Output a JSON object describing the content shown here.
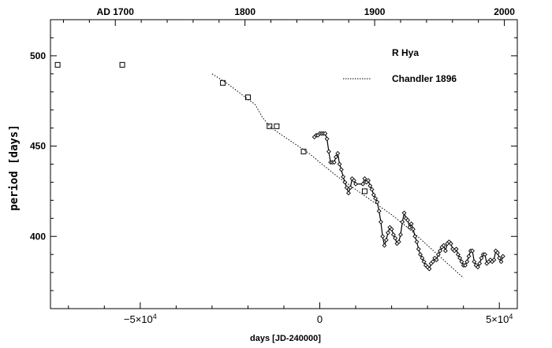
{
  "chart_data": {
    "type": "scatter",
    "xlabel": "days [JD-240000]",
    "ylabel": "period [days]",
    "xlim": [
      -75000,
      55000
    ],
    "ylim": [
      360,
      520
    ],
    "xticks": [
      {
        "value": -50000,
        "label": "−5×10",
        "sup": "4"
      },
      {
        "value": 0,
        "label": "0",
        "sup": ""
      },
      {
        "value": 50000,
        "label": "5×10",
        "sup": "4"
      }
    ],
    "yticks": [
      {
        "value": 400,
        "label": "400"
      },
      {
        "value": 450,
        "label": "450"
      },
      {
        "value": 500,
        "label": "500"
      }
    ],
    "top_axis": {
      "ticks": [
        {
          "year": 1700,
          "label": "AD 1700"
        },
        {
          "year": 1800,
          "label": "1800"
        },
        {
          "year": 1900,
          "label": "1900"
        },
        {
          "year": 2000,
          "label": "2000"
        }
      ],
      "year_range": [
        1650,
        2010
      ]
    },
    "legend": {
      "title": "R Hya",
      "entries": [
        {
          "name": "Chandler 1896",
          "style": "dotted"
        }
      ],
      "position": "top-right"
    },
    "series": [
      {
        "style": "open-squares",
        "x": [
          -73000,
          -55000,
          -27000,
          -20000,
          -14000,
          -12000,
          -4500,
          12500
        ],
        "y": [
          495,
          495,
          485,
          477,
          461,
          461,
          447,
          425
        ]
      },
      {
        "name": "Chandler 1896",
        "style": "dotted-line",
        "x": [
          -30000,
          -26000,
          -22000,
          -18000,
          -16000,
          -14000,
          -12000,
          -9000,
          -6000,
          -3000,
          0,
          5000,
          10000,
          15000,
          20000,
          25000,
          30000,
          35000,
          40000
        ],
        "y": [
          490,
          485,
          479,
          473,
          466,
          461,
          458,
          454,
          450,
          446,
          441,
          433,
          426,
          419,
          412,
          404,
          395,
          386,
          377
        ]
      },
      {
        "style": "connected-diamonds",
        "x": [
          -1500,
          -1000,
          -500,
          0,
          500,
          1000,
          1500,
          2000,
          2500,
          3000,
          3500,
          4000,
          4500,
          5000,
          5500,
          6000,
          6500,
          7000,
          7500,
          8000,
          8500,
          9000,
          9500,
          10000,
          12000,
          12500,
          13000,
          13500,
          14000,
          14500,
          15000,
          15500,
          16000,
          16500,
          17000,
          17500,
          18000,
          18500,
          19000,
          19500,
          20000,
          20500,
          21000,
          21500,
          22000,
          22500,
          23000,
          23500,
          24000,
          24500,
          25000,
          25500,
          26000,
          26500,
          27000,
          27500,
          28000,
          28500,
          29000,
          29500,
          30000,
          30500,
          31000,
          31500,
          32000,
          32500,
          33000,
          33500,
          34000,
          34500,
          35000,
          35500,
          36000,
          36500,
          37000,
          37500,
          38000,
          38500,
          39000,
          39500,
          40000,
          40500,
          41000,
          41500,
          42000,
          42500,
          43000,
          43500,
          44000,
          44500,
          45000,
          45500,
          46000,
          46500,
          47000,
          47500,
          48000,
          48500,
          49000,
          49500,
          50000,
          50500,
          51000
        ],
        "y": [
          455,
          456,
          456,
          457,
          457,
          457,
          457,
          454,
          447,
          441,
          441,
          441,
          444,
          446,
          440,
          437,
          433,
          430,
          427,
          424,
          427,
          432,
          431,
          429,
          429,
          432,
          430,
          431,
          428,
          426,
          423,
          421,
          419,
          414,
          408,
          400,
          395,
          398,
          402,
          405,
          404,
          401,
          399,
          396,
          397,
          401,
          408,
          413,
          410,
          409,
          405,
          407,
          404,
          400,
          397,
          393,
          390,
          388,
          386,
          384,
          383,
          382,
          385,
          386,
          388,
          387,
          390,
          392,
          394,
          395,
          392,
          396,
          397,
          396,
          393,
          392,
          393,
          390,
          388,
          386,
          384,
          384,
          386,
          389,
          392,
          392,
          386,
          384,
          383,
          385,
          388,
          390,
          390,
          385,
          386,
          387,
          386,
          387,
          392,
          391,
          388,
          386,
          389
        ]
      }
    ]
  }
}
